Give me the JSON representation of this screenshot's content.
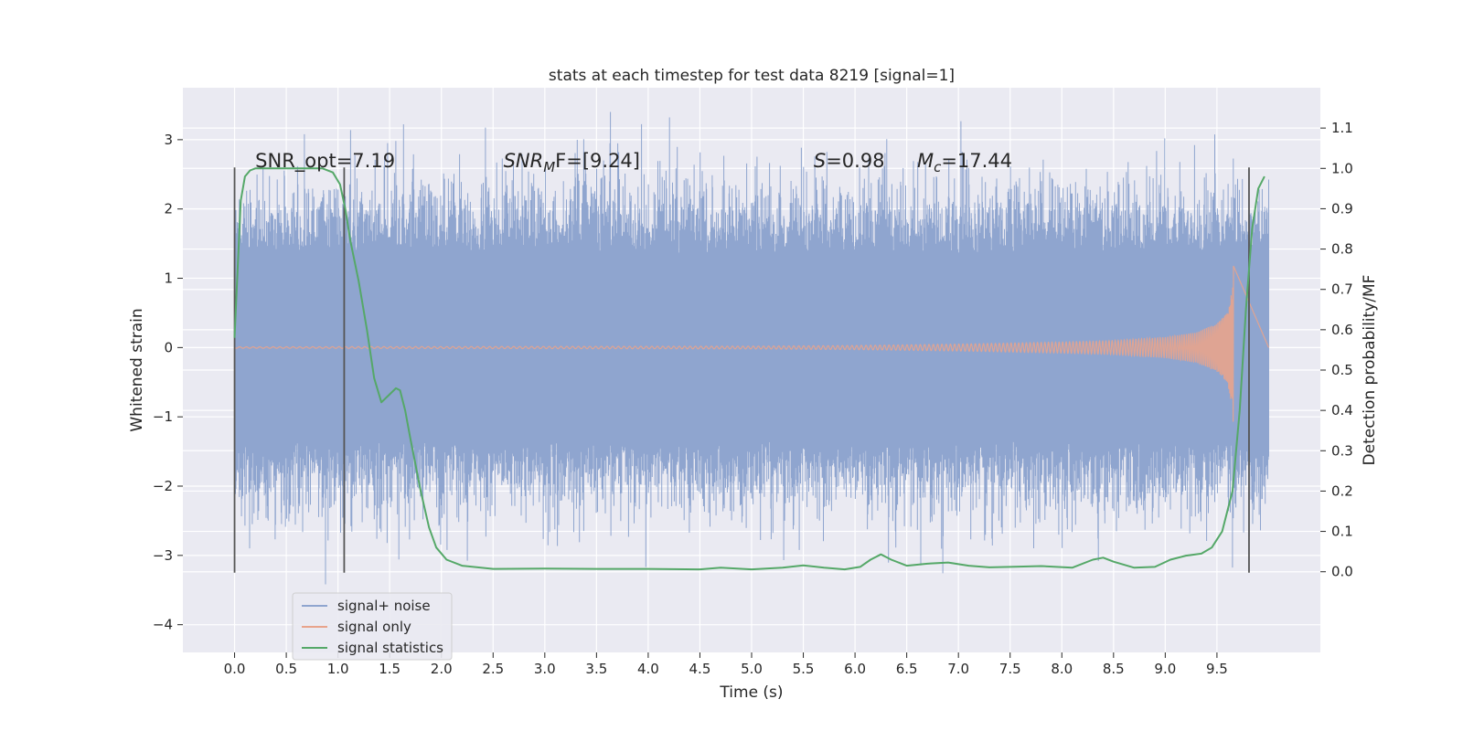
{
  "chart_data": {
    "type": "line",
    "title": "stats at each timestep for test data 8219 [signal=1]",
    "xlabel": "Time (s)",
    "ylabel": "Whitened strain",
    "y2label": "Detection probability/MF",
    "xlim": [
      -0.5,
      10.5
    ],
    "ylim": [
      -4.4,
      3.75
    ],
    "y2lim": [
      -0.2,
      1.2
    ],
    "xticks": [
      0.0,
      0.5,
      1.0,
      1.5,
      2.0,
      2.5,
      3.0,
      3.5,
      4.0,
      4.5,
      5.0,
      5.5,
      6.0,
      6.5,
      7.0,
      7.5,
      8.0,
      8.5,
      9.0,
      9.5
    ],
    "xtick_labels": [
      "0.0",
      "0.5",
      "1.0",
      "1.5",
      "2.0",
      "2.5",
      "3.0",
      "3.5",
      "4.0",
      "4.5",
      "5.0",
      "5.5",
      "6.0",
      "6.5",
      "7.0",
      "7.5",
      "8.0",
      "8.5",
      "9.0",
      "9.5"
    ],
    "yticks": [
      -4,
      -3,
      -2,
      -1,
      0,
      1,
      2,
      3
    ],
    "ytick_labels": [
      "−4",
      "−3",
      "−2",
      "−1",
      "0",
      "1",
      "2",
      "3"
    ],
    "y2ticks": [
      0.0,
      0.1,
      0.2,
      0.3,
      0.4,
      0.5,
      0.6,
      0.7,
      0.8,
      0.9,
      1.0,
      1.1
    ],
    "y2tick_labels": [
      "0.0",
      "0.1",
      "0.2",
      "0.3",
      "0.4",
      "0.5",
      "0.6",
      "0.7",
      "0.8",
      "0.9",
      "1.0",
      "1.1"
    ],
    "grid": true,
    "legend_position": "lower-left",
    "colors": {
      "noise": "#8fa5cf",
      "signal": "#e8a48c",
      "stats": "#55a868",
      "vline": "#555555",
      "background": "#eaeaf2"
    },
    "annotations": [
      {
        "prefix": "SNR_opt",
        "sub": "",
        "suffix": "=7.19",
        "x": 0.2,
        "y": 2.6
      },
      {
        "prefix": "SNR",
        "sub": "M",
        "suffix": "F=[9.24]",
        "x": 2.6,
        "y": 2.6,
        "italic": true
      },
      {
        "prefix": "S",
        "sub": "",
        "suffix": "=0.98",
        "x": 5.6,
        "y": 2.6,
        "italic": true
      },
      {
        "prefix": "M",
        "sub": "c",
        "suffix": "=17.44",
        "x": 6.6,
        "y": 2.6,
        "italic": true
      }
    ],
    "vlines": [
      0.0,
      1.06,
      9.81
    ],
    "vline_range": [
      -3.25,
      2.6
    ],
    "noise": {
      "t_start": 0.0,
      "t_end": 10.0,
      "core_amp": 1.35,
      "outer_amp": 2.05
    },
    "signal": {
      "t_start": 0.0,
      "t_end": 9.66,
      "envelope_x": [
        0.0,
        5.0,
        6.0,
        7.0,
        8.0,
        8.5,
        9.0,
        9.3,
        9.5,
        9.6,
        9.64,
        9.66
      ],
      "envelope_y": [
        0.01,
        0.02,
        0.03,
        0.05,
        0.08,
        0.1,
        0.15,
        0.22,
        0.35,
        0.5,
        0.8,
        1.2
      ]
    },
    "series": [
      {
        "name": "signal+ noise",
        "axis": "left"
      },
      {
        "name": "signal only",
        "axis": "left"
      },
      {
        "name": "signal statistics",
        "axis": "right",
        "x": [
          0.0,
          0.03,
          0.06,
          0.1,
          0.15,
          0.2,
          0.3,
          0.5,
          0.7,
          0.85,
          0.95,
          1.02,
          1.07,
          1.12,
          1.2,
          1.28,
          1.35,
          1.42,
          1.5,
          1.56,
          1.6,
          1.65,
          1.7,
          1.8,
          1.88,
          1.95,
          2.05,
          2.2,
          2.5,
          3.0,
          3.5,
          4.0,
          4.5,
          4.7,
          5.0,
          5.3,
          5.5,
          5.7,
          5.9,
          6.05,
          6.15,
          6.25,
          6.35,
          6.5,
          6.7,
          6.9,
          7.1,
          7.3,
          7.5,
          7.8,
          8.1,
          8.3,
          8.4,
          8.5,
          8.7,
          8.9,
          9.05,
          9.2,
          9.35,
          9.45,
          9.55,
          9.65,
          9.72,
          9.78,
          9.84,
          9.9,
          9.96
        ],
        "values": [
          0.58,
          0.75,
          0.92,
          0.98,
          0.995,
          1.0,
          1.0,
          1.0,
          1.0,
          1.0,
          0.99,
          0.96,
          0.9,
          0.82,
          0.72,
          0.6,
          0.48,
          0.42,
          0.44,
          0.455,
          0.45,
          0.4,
          0.33,
          0.2,
          0.11,
          0.06,
          0.03,
          0.015,
          0.007,
          0.008,
          0.007,
          0.007,
          0.006,
          0.01,
          0.006,
          0.01,
          0.016,
          0.01,
          0.006,
          0.012,
          0.03,
          0.043,
          0.03,
          0.015,
          0.02,
          0.023,
          0.015,
          0.011,
          0.012,
          0.014,
          0.01,
          0.03,
          0.035,
          0.025,
          0.01,
          0.012,
          0.03,
          0.04,
          0.045,
          0.06,
          0.1,
          0.2,
          0.4,
          0.65,
          0.85,
          0.95,
          0.98
        ]
      }
    ]
  }
}
